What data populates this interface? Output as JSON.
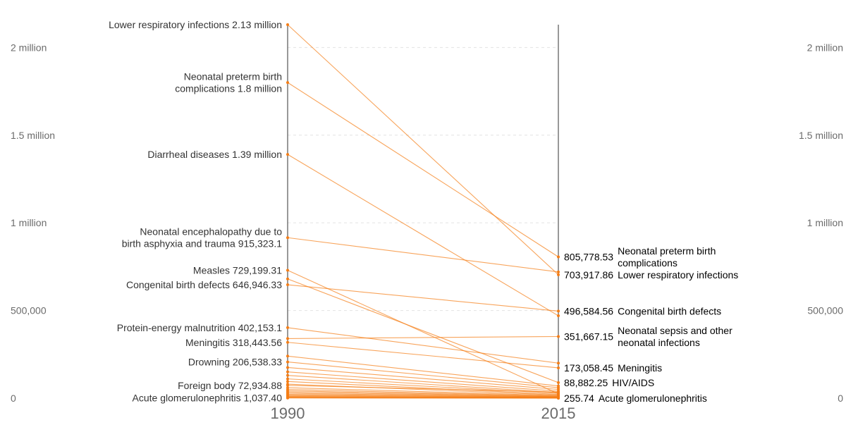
{
  "chart_data": {
    "type": "line",
    "x": [
      "1990",
      "2015"
    ],
    "y_ticks": [
      "0",
      "500,000",
      "1 million",
      "1.5 million",
      "2 million"
    ],
    "y_tick_values": [
      0,
      500000,
      1000000,
      1500000,
      2000000
    ],
    "ylim": [
      0,
      2130000
    ],
    "grid": true,
    "series_color": "#f57d15",
    "series": [
      {
        "name": "Lower respiratory infections",
        "values": [
          2130000,
          703917.86
        ]
      },
      {
        "name": "Neonatal preterm birth complications",
        "values": [
          1800000,
          805778.53
        ]
      },
      {
        "name": "Diarrheal diseases",
        "values": [
          1390000,
          470000
        ]
      },
      {
        "name": "Neonatal encephalopathy due to birth asphyxia and trauma",
        "values": [
          915323.1,
          720000
        ]
      },
      {
        "name": "Measles",
        "values": [
          729199.31,
          25000
        ]
      },
      {
        "name": "Congenital birth defects",
        "values": [
          646946.33,
          496584.56
        ]
      },
      {
        "name": "Protein-energy malnutrition",
        "values": [
          402153.1,
          200000
        ]
      },
      {
        "name": "Meningitis",
        "values": [
          318443.56,
          173058.45
        ]
      },
      {
        "name": "Neonatal sepsis and other neonatal infections",
        "values": [
          340000,
          351667.15
        ]
      },
      {
        "name": "HIV/AIDS",
        "values": [
          680000,
          88882.25
        ]
      },
      {
        "name": "Drowning",
        "values": [
          206538.33,
          60000
        ]
      },
      {
        "name": "Foreign body",
        "values": [
          72934.88,
          35000
        ]
      },
      {
        "name": "Acute glomerulonephritis",
        "values": [
          1037.4,
          255.74
        ]
      },
      {
        "name": "",
        "values": [
          240000,
          70000
        ]
      },
      {
        "name": "",
        "values": [
          175000,
          50000
        ]
      },
      {
        "name": "",
        "values": [
          150000,
          40000
        ]
      },
      {
        "name": "",
        "values": [
          130000,
          32000
        ]
      },
      {
        "name": "",
        "values": [
          110000,
          28000
        ]
      },
      {
        "name": "",
        "values": [
          95000,
          22000
        ]
      },
      {
        "name": "",
        "values": [
          80000,
          18000
        ]
      },
      {
        "name": "",
        "values": [
          60000,
          15000
        ]
      },
      {
        "name": "",
        "values": [
          50000,
          12000
        ]
      },
      {
        "name": "",
        "values": [
          42000,
          10000
        ]
      },
      {
        "name": "",
        "values": [
          35000,
          8000
        ]
      },
      {
        "name": "",
        "values": [
          28000,
          7000
        ]
      },
      {
        "name": "",
        "values": [
          22000,
          5500
        ]
      },
      {
        "name": "",
        "values": [
          17000,
          4500
        ]
      },
      {
        "name": "",
        "values": [
          13000,
          3500
        ]
      },
      {
        "name": "",
        "values": [
          10000,
          2500
        ]
      },
      {
        "name": "",
        "values": [
          7000,
          1800
        ]
      },
      {
        "name": "",
        "values": [
          5000,
          1200
        ]
      },
      {
        "name": "",
        "values": [
          3000,
          800
        ]
      },
      {
        "name": "",
        "values": [
          2000,
          500
        ]
      }
    ],
    "left_labels": [
      {
        "text": "Lower respiratory infections 2.13 million",
        "value": 2130000
      },
      {
        "text": "Neonatal preterm birth\ncomplications 1.8 million",
        "value": 1800000
      },
      {
        "text": "Diarrheal diseases 1.39 million",
        "value": 1390000
      },
      {
        "text": "Neonatal encephalopathy due to\nbirth asphyxia and trauma 915,323.1",
        "value": 915323.1
      },
      {
        "text": "Measles 729,199.31",
        "value": 729199.31
      },
      {
        "text": "Congenital birth defects 646,946.33",
        "value": 646946.33
      },
      {
        "text": "Protein-energy malnutrition 402,153.1",
        "value": 402153.1
      },
      {
        "text": "Meningitis 318,443.56",
        "value": 318443.56
      },
      {
        "text": "Drowning 206,538.33",
        "value": 206538.33
      },
      {
        "text": "Foreign body 72,934.88",
        "value": 72934.88
      },
      {
        "text": "Acute glomerulonephritis 1,037.40",
        "value": 1037.4
      }
    ],
    "right_labels": [
      {
        "value_text": "805,778.53",
        "name": "Neonatal preterm birth\ncomplications",
        "value": 805778.53
      },
      {
        "value_text": "703,917.86",
        "name": "Lower respiratory infections",
        "value": 703917.86
      },
      {
        "value_text": "496,584.56",
        "name": "Congenital birth defects",
        "value": 496584.56
      },
      {
        "value_text": "351,667.15",
        "name": "Neonatal sepsis and other\nneonatal infections",
        "value": 351667.15
      },
      {
        "value_text": "173,058.45",
        "name": "Meningitis",
        "value": 173058.45
      },
      {
        "value_text": "88,882.25",
        "name": "HIV/AIDS",
        "value": 88882.25
      },
      {
        "value_text": "255.74",
        "name": "Acute glomerulonephritis",
        "value": 255.74
      }
    ]
  }
}
